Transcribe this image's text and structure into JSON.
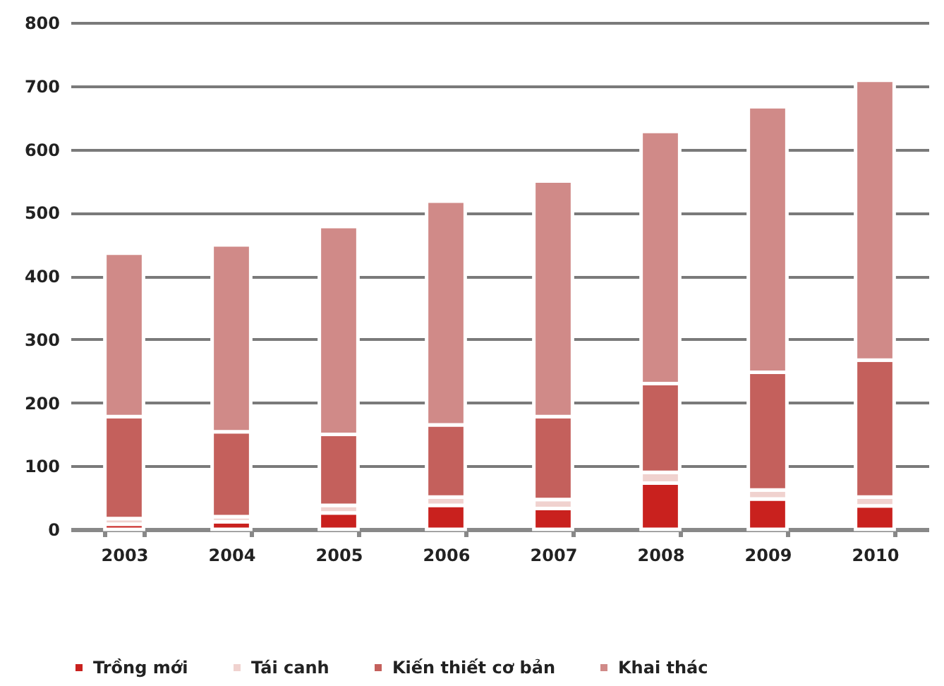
{
  "chart_data": {
    "type": "bar",
    "stacked": true,
    "categories": [
      "2003",
      "2004",
      "2005",
      "2006",
      "2007",
      "2008",
      "2009",
      "2010"
    ],
    "series": [
      {
        "name": "Trồng mới",
        "color": "#c9211e",
        "values": [
          8,
          12,
          26,
          38,
          33,
          73,
          48,
          37
        ]
      },
      {
        "name": "Tái canh",
        "color": "#f0d2cf",
        "values": [
          9,
          8,
          12,
          13,
          14,
          17,
          14,
          14
        ]
      },
      {
        "name": "Kiến thiết cơ bản",
        "color": "#c4605c",
        "values": [
          161,
          134,
          112,
          114,
          131,
          140,
          186,
          216
        ]
      },
      {
        "name": "Khai thác",
        "color": "#d08a88",
        "values": [
          258,
          295,
          328,
          353,
          372,
          398,
          419,
          442
        ]
      }
    ],
    "ylim": [
      0,
      800
    ],
    "yticks": [
      0,
      100,
      200,
      300,
      400,
      500,
      600,
      700,
      800
    ],
    "grid": "y",
    "legend": "bottom"
  }
}
